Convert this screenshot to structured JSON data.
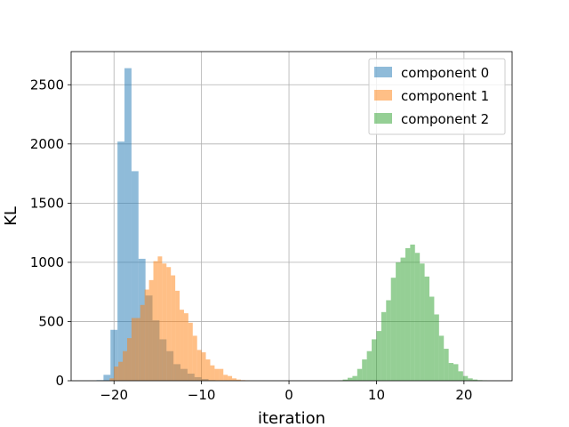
{
  "chart_data": {
    "type": "bar",
    "subtype": "overlapping-histogram",
    "title": "",
    "xlabel": "iteration",
    "ylabel": "KL",
    "xlim": [
      -24.9,
      25.5
    ],
    "ylim": [
      0,
      2780
    ],
    "xticks": [
      -20,
      -10,
      0,
      10,
      20
    ],
    "xtick_labels": [
      "−20",
      "−10",
      "0",
      "10",
      "20"
    ],
    "yticks": [
      0,
      500,
      1000,
      1500,
      2000,
      2500
    ],
    "ytick_labels": [
      "0",
      "500",
      "1000",
      "1500",
      "2000",
      "2500"
    ],
    "grid": true,
    "legend_position": "top-right",
    "bar_opacity": 0.5,
    "series": [
      {
        "name": "component 0",
        "color": "#1f77b4",
        "bins": [
          {
            "x0": -22.0,
            "x1": -21.2,
            "count": 5
          },
          {
            "x0": -21.2,
            "x1": -20.4,
            "count": 50
          },
          {
            "x0": -20.4,
            "x1": -19.6,
            "count": 430
          },
          {
            "x0": -19.6,
            "x1": -18.8,
            "count": 2020
          },
          {
            "x0": -18.8,
            "x1": -18.0,
            "count": 2640
          },
          {
            "x0": -18.0,
            "x1": -17.2,
            "count": 1770
          },
          {
            "x0": -17.2,
            "x1": -16.4,
            "count": 1030
          },
          {
            "x0": -16.4,
            "x1": -15.6,
            "count": 720
          },
          {
            "x0": -15.6,
            "x1": -14.8,
            "count": 510
          },
          {
            "x0": -14.8,
            "x1": -14.0,
            "count": 350
          },
          {
            "x0": -14.0,
            "x1": -13.2,
            "count": 250
          },
          {
            "x0": -13.2,
            "x1": -12.4,
            "count": 140
          },
          {
            "x0": -12.4,
            "x1": -11.6,
            "count": 100
          },
          {
            "x0": -11.6,
            "x1": -10.8,
            "count": 60
          },
          {
            "x0": -10.8,
            "x1": -10.0,
            "count": 30
          },
          {
            "x0": -10.0,
            "x1": -9.2,
            "count": 15
          },
          {
            "x0": -9.2,
            "x1": -8.4,
            "count": 5
          }
        ]
      },
      {
        "name": "component 1",
        "color": "#ff7f0e",
        "bins": [
          {
            "x0": -20.5,
            "x1": -20.0,
            "count": 20
          },
          {
            "x0": -20.0,
            "x1": -19.5,
            "count": 120
          },
          {
            "x0": -19.5,
            "x1": -19.0,
            "count": 160
          },
          {
            "x0": -19.0,
            "x1": -18.5,
            "count": 250
          },
          {
            "x0": -18.5,
            "x1": -18.0,
            "count": 360
          },
          {
            "x0": -18.0,
            "x1": -17.5,
            "count": 530
          },
          {
            "x0": -17.5,
            "x1": -17.0,
            "count": 530
          },
          {
            "x0": -17.0,
            "x1": -16.5,
            "count": 640
          },
          {
            "x0": -16.5,
            "x1": -16.0,
            "count": 770
          },
          {
            "x0": -16.0,
            "x1": -15.5,
            "count": 850
          },
          {
            "x0": -15.5,
            "x1": -15.0,
            "count": 1010
          },
          {
            "x0": -15.0,
            "x1": -14.5,
            "count": 1050
          },
          {
            "x0": -14.5,
            "x1": -14.0,
            "count": 990
          },
          {
            "x0": -14.0,
            "x1": -13.5,
            "count": 960
          },
          {
            "x0": -13.5,
            "x1": -13.0,
            "count": 890
          },
          {
            "x0": -13.0,
            "x1": -12.5,
            "count": 760
          },
          {
            "x0": -12.5,
            "x1": -12.0,
            "count": 600
          },
          {
            "x0": -12.0,
            "x1": -11.5,
            "count": 570
          },
          {
            "x0": -11.5,
            "x1": -11.0,
            "count": 490
          },
          {
            "x0": -11.0,
            "x1": -10.5,
            "count": 380
          },
          {
            "x0": -10.5,
            "x1": -10.0,
            "count": 260
          },
          {
            "x0": -10.0,
            "x1": -9.5,
            "count": 240
          },
          {
            "x0": -9.5,
            "x1": -9.0,
            "count": 180
          },
          {
            "x0": -9.0,
            "x1": -8.5,
            "count": 130
          },
          {
            "x0": -8.5,
            "x1": -8.0,
            "count": 100
          },
          {
            "x0": -8.0,
            "x1": -7.5,
            "count": 100
          },
          {
            "x0": -7.5,
            "x1": -7.0,
            "count": 50
          },
          {
            "x0": -7.0,
            "x1": -6.5,
            "count": 40
          },
          {
            "x0": -6.5,
            "x1": -6.0,
            "count": 20
          },
          {
            "x0": -6.0,
            "x1": -5.5,
            "count": 10
          },
          {
            "x0": -5.5,
            "x1": -5.0,
            "count": 5
          },
          {
            "x0": -5.0,
            "x1": -4.5,
            "count": 3
          }
        ]
      },
      {
        "name": "component 2",
        "color": "#2ca02c",
        "bins": [
          {
            "x0": 5.6,
            "x1": 6.15,
            "count": 3
          },
          {
            "x0": 6.15,
            "x1": 6.7,
            "count": 10
          },
          {
            "x0": 6.7,
            "x1": 7.25,
            "count": 25
          },
          {
            "x0": 7.25,
            "x1": 7.8,
            "count": 40
          },
          {
            "x0": 7.8,
            "x1": 8.35,
            "count": 100
          },
          {
            "x0": 8.35,
            "x1": 8.9,
            "count": 180
          },
          {
            "x0": 8.9,
            "x1": 9.45,
            "count": 250
          },
          {
            "x0": 9.45,
            "x1": 10.0,
            "count": 350
          },
          {
            "x0": 10.0,
            "x1": 10.55,
            "count": 420
          },
          {
            "x0": 10.55,
            "x1": 11.1,
            "count": 580
          },
          {
            "x0": 11.1,
            "x1": 11.65,
            "count": 680
          },
          {
            "x0": 11.65,
            "x1": 12.2,
            "count": 870
          },
          {
            "x0": 12.2,
            "x1": 12.75,
            "count": 1000
          },
          {
            "x0": 12.75,
            "x1": 13.3,
            "count": 1040
          },
          {
            "x0": 13.3,
            "x1": 13.85,
            "count": 1120
          },
          {
            "x0": 13.85,
            "x1": 14.4,
            "count": 1150
          },
          {
            "x0": 14.4,
            "x1": 14.95,
            "count": 1080
          },
          {
            "x0": 14.95,
            "x1": 15.5,
            "count": 990
          },
          {
            "x0": 15.5,
            "x1": 16.05,
            "count": 880
          },
          {
            "x0": 16.05,
            "x1": 16.6,
            "count": 710
          },
          {
            "x0": 16.6,
            "x1": 17.15,
            "count": 560
          },
          {
            "x0": 17.15,
            "x1": 17.7,
            "count": 380
          },
          {
            "x0": 17.7,
            "x1": 18.25,
            "count": 270
          },
          {
            "x0": 18.25,
            "x1": 18.8,
            "count": 150
          },
          {
            "x0": 18.8,
            "x1": 19.35,
            "count": 140
          },
          {
            "x0": 19.35,
            "x1": 19.9,
            "count": 80
          },
          {
            "x0": 19.9,
            "x1": 20.45,
            "count": 40
          },
          {
            "x0": 20.45,
            "x1": 21.0,
            "count": 20
          },
          {
            "x0": 21.0,
            "x1": 21.55,
            "count": 10
          },
          {
            "x0": 21.55,
            "x1": 22.1,
            "count": 5
          },
          {
            "x0": 22.1,
            "x1": 22.65,
            "count": 3
          }
        ]
      }
    ]
  }
}
